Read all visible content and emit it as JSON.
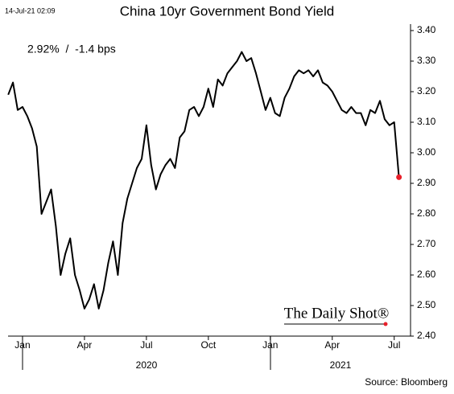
{
  "chart_data": {
    "type": "line",
    "title": "China 10yr Government Bond Yield",
    "timestamp": "14-Jul-21 02:09",
    "annotation": "2.92%  /  -1.4 bps",
    "watermark": "The Daily Shot®",
    "source": "Source: Bloomberg",
    "year_labels": [
      "2020",
      "2021"
    ],
    "categories": [
      null,
      null,
      null,
      "Jan",
      null,
      null,
      null,
      null,
      null,
      null,
      null,
      null,
      null,
      null,
      null,
      null,
      "Apr",
      null,
      null,
      null,
      null,
      null,
      null,
      null,
      null,
      null,
      null,
      null,
      null,
      "Jul",
      null,
      null,
      null,
      null,
      null,
      null,
      null,
      null,
      null,
      null,
      null,
      null,
      "Oct",
      null,
      null,
      null,
      null,
      null,
      null,
      null,
      null,
      null,
      null,
      null,
      null,
      "Jan",
      null,
      null,
      null,
      null,
      null,
      null,
      null,
      null,
      null,
      null,
      null,
      null,
      "Apr",
      null,
      null,
      null,
      null,
      null,
      null,
      null,
      null,
      null,
      null,
      null,
      null,
      "Jul",
      null
    ],
    "series": [
      {
        "name": "China 10yr",
        "color": "#000000",
        "values": [
          3.19,
          3.23,
          3.14,
          3.15,
          3.12,
          3.08,
          3.02,
          2.8,
          2.84,
          2.88,
          2.76,
          2.6,
          2.67,
          2.72,
          2.6,
          2.55,
          2.49,
          2.52,
          2.57,
          2.49,
          2.55,
          2.64,
          2.71,
          2.6,
          2.77,
          2.85,
          2.9,
          2.95,
          2.98,
          3.09,
          2.96,
          2.88,
          2.93,
          2.96,
          2.98,
          2.95,
          3.05,
          3.07,
          3.14,
          3.15,
          3.12,
          3.15,
          3.21,
          3.15,
          3.24,
          3.22,
          3.26,
          3.28,
          3.3,
          3.33,
          3.3,
          3.31,
          3.26,
          3.2,
          3.14,
          3.18,
          3.13,
          3.12,
          3.18,
          3.21,
          3.25,
          3.27,
          3.26,
          3.27,
          3.25,
          3.27,
          3.23,
          3.22,
          3.2,
          3.17,
          3.14,
          3.13,
          3.15,
          3.13,
          3.13,
          3.09,
          3.14,
          3.13,
          3.17,
          3.11,
          3.09,
          3.1,
          2.92
        ]
      }
    ],
    "last_point_color": "#e8202a",
    "ylim": [
      2.4,
      3.4
    ],
    "yticks": [
      {
        "value": 2.4,
        "label": "2.40"
      },
      {
        "value": 2.5,
        "label": "2.50"
      },
      {
        "value": 2.6,
        "label": "2.60"
      },
      {
        "value": 2.7,
        "label": "2.70"
      },
      {
        "value": 2.8,
        "label": "2.80"
      },
      {
        "value": 2.9,
        "label": "2.90"
      },
      {
        "value": 3.0,
        "label": "3.00"
      },
      {
        "value": 3.1,
        "label": "3.10"
      },
      {
        "value": 3.2,
        "label": "3.20"
      },
      {
        "value": 3.3,
        "label": "3.30"
      },
      {
        "value": 3.4,
        "label": "3.40"
      }
    ],
    "grid": false
  }
}
